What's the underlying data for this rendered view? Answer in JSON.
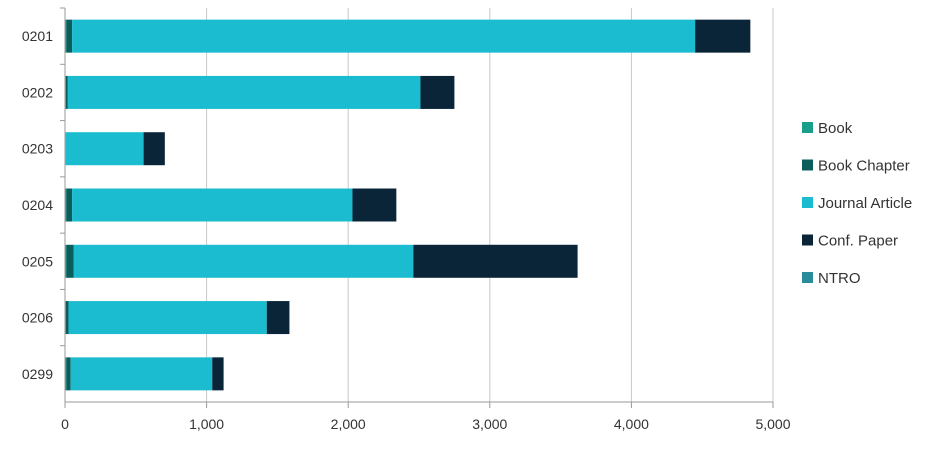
{
  "chart_data": {
    "type": "bar",
    "orientation": "horizontal",
    "stacked": true,
    "categories": [
      "0201",
      "0202",
      "0203",
      "0204",
      "0205",
      "0206",
      "0299"
    ],
    "series": [
      {
        "name": "Book",
        "color": "#1a9e8c",
        "values": [
          10,
          5,
          3,
          10,
          10,
          5,
          10
        ]
      },
      {
        "name": "Book Chapter",
        "color": "#0b5e5c",
        "values": [
          40,
          15,
          2,
          40,
          50,
          20,
          30
        ]
      },
      {
        "name": "Journal Article",
        "color": "#1bbccf",
        "values": [
          4400,
          2490,
          550,
          1980,
          2400,
          1400,
          1000
        ]
      },
      {
        "name": "Conf. Paper",
        "color": "#0a2438",
        "values": [
          390,
          240,
          150,
          310,
          1160,
          160,
          80
        ]
      },
      {
        "name": "NTRO",
        "color": "#2a8c9a",
        "values": [
          0,
          0,
          0,
          0,
          0,
          0,
          0
        ]
      }
    ],
    "xlim": [
      0,
      5000
    ],
    "xticks": [
      "0",
      "1,000",
      "2,000",
      "3,000",
      "4,000",
      "5,000"
    ],
    "grid": true,
    "legend_position": "right"
  }
}
